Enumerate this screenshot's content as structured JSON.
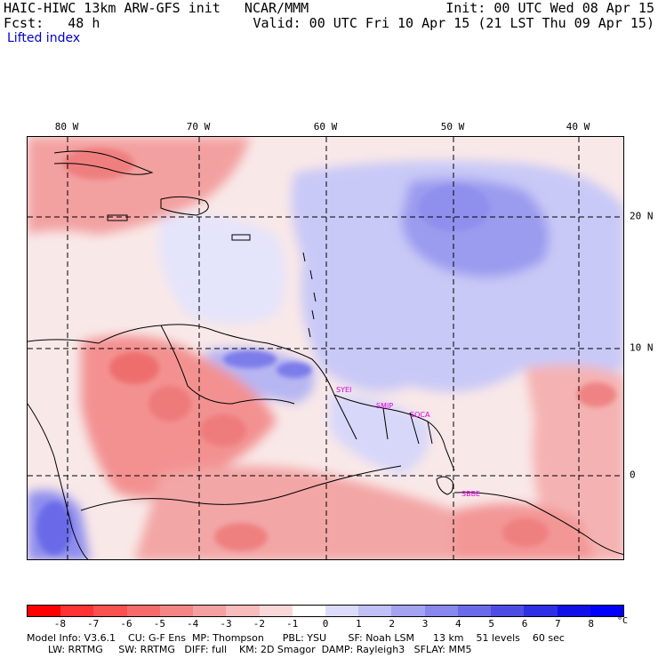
{
  "header": {
    "line1_left": "HAIC-HIWC 13km ARW-GFS init   NCAR/MMM",
    "line1_right": "Init: 00 UTC Wed 08 Apr 15",
    "line2_left": "Fcst:   48 h",
    "line2_right": "Valid: 00 UTC Fri 10 Apr 15 (21 LST Thu 09 Apr 15)",
    "field": "Lifted index"
  },
  "map": {
    "lon_labels": [
      "80 W",
      "70 W",
      "60 W",
      "50 W",
      "40 W"
    ],
    "lat_labels": [
      "20 N",
      "10 N",
      "0"
    ],
    "stations": [
      "SYEI",
      "SMJP",
      "SOCA",
      "SBBE"
    ]
  },
  "colorbar": {
    "ticks": [
      "-8",
      "-7",
      "-6",
      "-5",
      "-4",
      "-3",
      "-2",
      "-1",
      "0",
      "1",
      "2",
      "3",
      "4",
      "5",
      "6",
      "7",
      "8"
    ],
    "unit": "°C",
    "colors": [
      "#ff0000",
      "#ff3333",
      "#f95050",
      "#f56a6a",
      "#f38585",
      "#f4a0a0",
      "#f7bcbc",
      "#fad8d8",
      "#ffffff",
      "#dcdcfa",
      "#c0c0f6",
      "#a3a3f2",
      "#8787ee",
      "#6a6aea",
      "#4d4de6",
      "#2f2fe6",
      "#1010e8",
      "#0000ff"
    ]
  },
  "footer": {
    "line1": "Model Info: V3.6.1    CU: G-F Ens  MP: Thompson      PBL: YSU       SF: Noah LSM      13 km    51 levels    60 sec",
    "line2": "LW: RRTMG     SW: RRTMG   DIFF: full    KM: 2D Smagor  DAMP: Rayleigh3   SFLAY: MM5"
  }
}
